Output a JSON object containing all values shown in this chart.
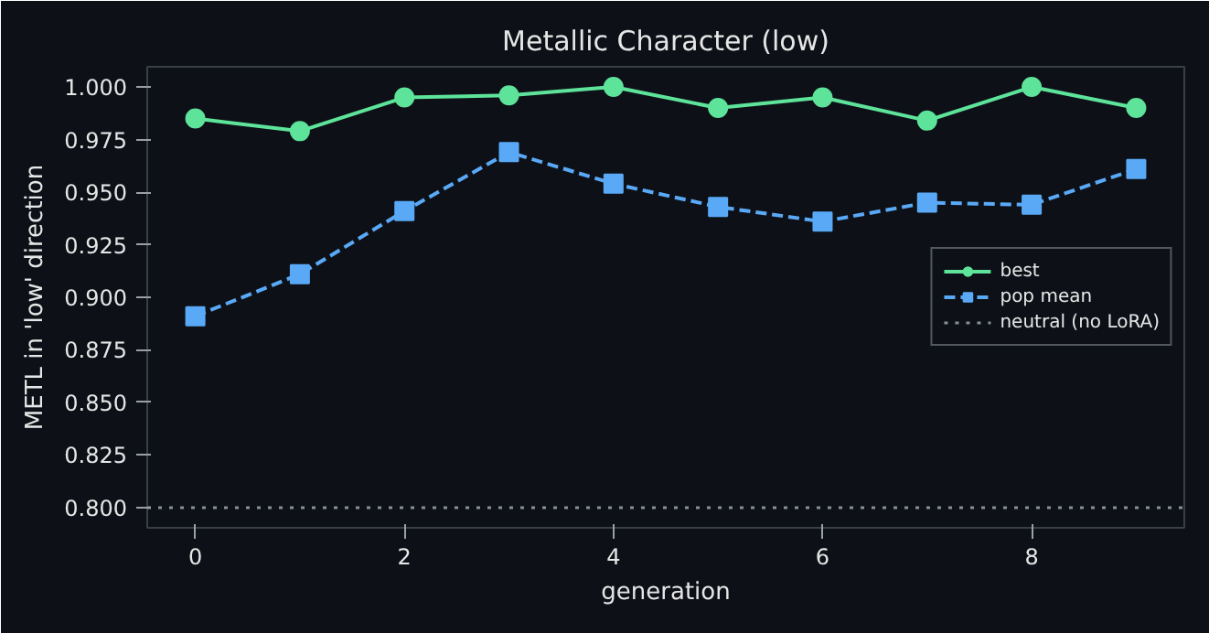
{
  "chart_data": {
    "type": "line",
    "title": "Metallic Character (low)",
    "xlabel": "generation",
    "ylabel": "METL in 'low' direction",
    "x": [
      0,
      1,
      2,
      3,
      4,
      5,
      6,
      7,
      8,
      9
    ],
    "series": [
      {
        "name": "best",
        "color": "#5ee39a",
        "values": [
          0.985,
          0.979,
          0.995,
          0.996,
          1.0,
          0.99,
          0.995,
          0.984,
          1.0,
          0.99
        ],
        "marker": "circle",
        "line_style": "solid"
      },
      {
        "name": "pop mean",
        "color": "#5aa9f7",
        "values": [
          0.891,
          0.911,
          0.941,
          0.969,
          0.954,
          0.943,
          0.936,
          0.945,
          0.944,
          0.961
        ],
        "marker": "square",
        "line_style": "dashed"
      }
    ],
    "ref_lines": [
      {
        "axis": "y",
        "value": 0.8,
        "label": "neutral (no LoRA)",
        "color": "#8a8f98",
        "line_style": "dotted"
      }
    ],
    "xlim": [
      -0.46,
      9.46
    ],
    "ylim": [
      0.7904,
      1.0096
    ],
    "xticks": [
      0,
      2,
      4,
      6,
      8
    ],
    "yticks": [
      {
        "value": 0.8,
        "label": "0.800"
      },
      {
        "value": 0.825,
        "label": "0.825"
      },
      {
        "value": 0.85,
        "label": "0.850"
      },
      {
        "value": 0.875,
        "label": "0.875"
      },
      {
        "value": 0.9,
        "label": "0.900"
      },
      {
        "value": 0.925,
        "label": "0.925"
      },
      {
        "value": 0.95,
        "label": "0.950"
      },
      {
        "value": 0.975,
        "label": "0.975"
      },
      {
        "value": 1.0,
        "label": "1.000"
      }
    ],
    "grid": false,
    "legend": "right"
  }
}
